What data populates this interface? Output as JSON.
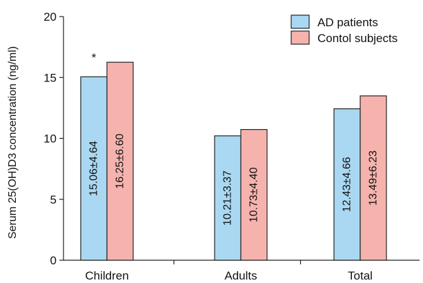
{
  "chart_data": {
    "type": "bar",
    "title": "",
    "xlabel": "",
    "ylabel": "Serum 25(OH)D3 concentration (ng/ml)",
    "ylim": [
      0,
      20
    ],
    "yticks": [
      0,
      5,
      10,
      15,
      20
    ],
    "categories": [
      "Children",
      "Adults",
      "Total"
    ],
    "series": [
      {
        "name": "AD patients",
        "color": "#aad8f2",
        "values": [
          15.06,
          10.21,
          12.43
        ],
        "labels": [
          "15.06±4.64",
          "10.21±3.37",
          "12.43±4.66"
        ]
      },
      {
        "name": "Contol subjects",
        "color": "#f6b3ae",
        "values": [
          16.25,
          10.73,
          13.49
        ],
        "labels": [
          "16.25±6.60",
          "10.73±4.40",
          "13.49±6.23"
        ]
      }
    ],
    "annotations": [
      {
        "text": "*",
        "category": "Children"
      }
    ],
    "legend_position": "top-right",
    "grid": false
  }
}
